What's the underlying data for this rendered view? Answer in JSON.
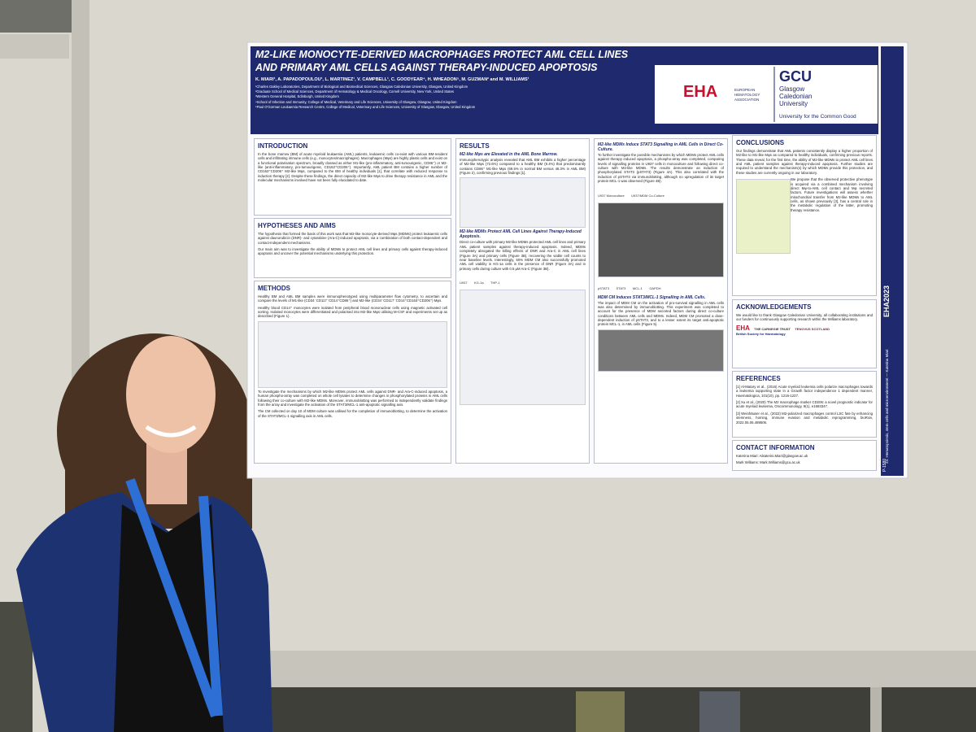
{
  "poster": {
    "title": "M2-LIKE MONOCYTE-DERIVED MACROPHAGES PROTECT AML CELL LINES AND PRIMARY AML CELLS AGAINST THERAPY-INDUCED APOPTOSIS",
    "authors": "K. MIARI¹, A. PAPADOPOULOU¹, L. MARTINEZ¹, V. CAMPBELL¹, C. GOODYEAR⁴, H. WHEADON⁵, M. GUZMAN² and M. WILLIAMS¹",
    "affiliations": [
      "¹Charles Oakley Laboratories, Department of Biological and Biomedical Sciences, Glasgow Caledonian University, Glasgow, United Kingdom",
      "²Graduate School of Medical Sciences, Department of Hematology & Medical Oncology, Cornell University, New York, United States",
      "³Western General Hospital, Edinburgh, United Kingdom",
      "⁴School of Infection and Immunity, College of Medical, Veterinary and Life Sciences, University of Glasgow, Glasgow, United Kingdom",
      "⁵Paul O'Gorman Leukaemia Research Centre, College of Medical, Veterinary and Life Sciences, University of Glasgow, Glasgow, United Kingdom"
    ],
    "logos": {
      "eha": "EHA",
      "eha_name": "EUROPEAN HEMATOLOGY ASSOCIATION",
      "gcu": "GCU",
      "gcu_name": "Glasgow Caledonian University",
      "gcu_motto": "University for the Common Good"
    },
    "introduction": {
      "heading": "INTRODUCTION",
      "body": "In the bone marrow (BM) of acute myeloid leukaemia (AML) patients, leukaemic cells co-exist with various BM-resident cells and infiltrating immune cells (e.g., monocytes/macrophages). Macrophages (Mφs) are highly plastic cells and exist on a functional polarisation spectrum, broadly classed as either M1-like (pro-inflammatory, anti-tumourigenic, CD86⁺) or M2-like (anti-inflammatory, pro-tumourigenic, CD163⁺CD206⁺). Importantly, AML patient BM contains a higher number of CD163⁺CD206⁺ M2-like Mφs, compared to the BM of healthy individuals [1], that correlate with reduced response to induction therapy [2]. Despite these findings, the direct capacity of M2-like Mφs to drive therapy resistance in AML and the molecular mechanisms involved have not been fully elucidated to date."
    },
    "hypotheses": {
      "heading": "HYPOTHESES AND AIMS",
      "body": [
        "The hypothesis that formed the basis of this work was that M2-like monocyte-derived Mφs (MDMs) protect leukaemic cells against daunorubicin (DNR)- and cytarabine (Ara-C)-induced apoptosis, via a combination of both contact-dependent and contact-independent mechanisms.",
        "Our main aim was to investigate the ability of MDMs to protect AML cell lines and primary cells against therapy-induced apoptosis and uncover the potential mechanisms underlying this protection."
      ]
    },
    "methods": {
      "heading": "METHODS",
      "body": [
        "Healthy BM and AML BM samples were immunophenotyped using multiparameter flow cytometry, to ascertain and compare the levels of M1-like (CD34⁻CD117⁻CD14⁺CD86⁺) and M2-like (CD34⁻CD117⁻CD14⁺CD163⁺CD206⁺) Mφs.",
        "Healthy blood CD14⁺ monocytes were isolated from peripheral blood mononuclear cells using magnetic activated cell sorting. Isolated monocytes were differentiated and polarised into M2-like Mφs utilising M-CSF and experiments set up as described (Figure 1).",
        "To investigate the mechanisms by which M2-like MDMs protect AML cells against DNR- and Ara-C-induced apoptosis, a human phospho-array was completed on whole cell lysates to determine changes in phosphorylated proteins in AML cells following their co-culture with M2-like MDMs. Moreover, immunoblotting was performed to independently validate findings from the array and investigate the activation of the STAT3/MCL-1 anti-apoptotic signalling axis.",
        "The CM collected on day 10 of MDM culture was utilised for the completion of immunoblotting, to determine the activation of the STAT3/MCL-1 signalling axis in AML cells."
      ]
    },
    "results": {
      "heading": "RESULTS",
      "subsections": [
        {
          "heading": "M2-like Mφs are Elevated in the AML Bone Marrow.",
          "body": "Immunophenotypic analysis revealed that AML BM exhibits a higher percentage of M2-like Mφs (72.6%) compared to a healthy BM (9.4%) that predominantly contains CD86⁺ M1-like Mφs (69.5% in normal BM versus 48.3% in AML BM) (Figure 2), confirming previous findings [1]."
        },
        {
          "heading": "M2-like MDMs Protect AML Cell Lines Against Therapy-Induced Apoptosis.",
          "body": "Direct co-culture with primary M2-like MDMs protected AML cell lines and primary AML patient samples against therapy-induced apoptosis. Indeed, MDMs completely abrogated the killing effects of DNR and Ara-C in AML cell lines (Figure 3A) and primary cells (Figure 3B), recovering the viable cell counts to near baseline levels. Interestingly, 50% MDM CM also successfully promoted AML cell viability in KG-1a cells in the presence of DNR (Figure 3A) and in primary cells during culture with 0.5 µM Ara-C (Figure 3B)."
        },
        {
          "heading": "M2-like MDMs Induce STAT3 Signalling in AML Cells in Direct Co-Culture.",
          "body": "To further investigate the possible mechanisms by which MDMs protect AML cells against therapy induced apoptosis, a phospho-array was completed, comparing levels of signalling proteins in U937 cells in monoculture and following direct co-culture with M2-like MDMs. The results demonstrate an induction of phosphorylated STAT3 (pSTAT3) (Figure 4A). This also correlated with the induction of pSTAT3 via immunoblotting, although no upregulation of its target protein MCL-1 was observed (Figure 4B)."
        },
        {
          "heading": "MDM CM Induces STAT3/MCL-1 Signalling in AML Cells.",
          "body": "The impact of MDM CM on the activation of pro-survival signalling in AML cells was also determined by immunoblotting. This experiment was completed to account for the presence of MDM secreted factors during direct co-culture conditions between AML cells and MDMs. Indeed, MDM CM promoted a dose-dependent induction of pSTAT3, and to a lesser extent its target anti-apoptotic protein MCL-1, in AML cells (Figure 5)."
        }
      ],
      "figure_labels": [
        "U937",
        "KG-1a",
        "THP-1",
        "U937 Monoculture",
        "U937/MDM Co-Culture",
        "pSTAT3",
        "STAT3",
        "MCL-1",
        "GAPDH"
      ]
    },
    "conclusions": {
      "heading": "CONCLUSIONS",
      "body": [
        "Our findings demonstrate that AML patients consistently display a higher proportion of M2-like to M1-like Mφs as compared to healthy individuals, confirming previous reports. These data reveal, for the first time, the ability of M2-like MDMs to protect AML cell lines and AML patient samples against therapy-induced apoptosis. Further studies are required to understand the mechanism(s) by which MDMs provide this protection, and these studies are currently ongoing in our laboratory.",
        "We propose that the observed protective phenotype is acquired via a combined mechanism involving direct Mφ-to-AML cell contact and Mφ secreted factors. Future investigations will assess whether mitochondrial transfer from M2-like MDMs to AML cells, as shown previously [3], has a central role in the metabolic regulation of the latter, promoting therapy resistance."
      ]
    },
    "acknowledgements": {
      "heading": "ACKNOWLEDGEMENTS",
      "body": "We would like to thank Glasgow Caledonian University, all collaborating institutions and our funders for continuously supporting research within the Williams laboratory.",
      "funders": [
        "EHA",
        "THE CARNEGIE TRUST",
        "TENOVUS SCOTLAND",
        "British Society for Haematology"
      ]
    },
    "references": {
      "heading": "REFERENCES",
      "items": [
        "[1] Al-Matary et al., (2016) Acute myeloid leukemia cells polarize macrophages towards a leukemia supporting state in a Growth factor independence 1 dependent manner, Haematologica, 101(10), pp. 1216-1227.",
        "[2] Xu et al., (2020) The M2 macrophage marker CD206: a novel prognostic indicator for acute myeloid leukemia, Oncoimmunology, 9(1), e1683347.",
        "[3] Weinhäuser et al., (2022) M2-polarized macrophages control LSC fate by enhancing stemness, homing, immune evasion and metabolic reprogramming, bioRxiv, 2022.05.06.489506."
      ]
    },
    "contact": {
      "heading": "CONTACT INFORMATION",
      "items": [
        "Katerina Miari: Aikaterini.Miari@glasgow.ac.uk",
        "Mark Williams: Mark.Williams@gcu.ac.uk"
      ]
    },
    "side": {
      "congress": "EHA2023",
      "poster_id": "P-1580",
      "topic": "23. Hematopoiesis, stem cells and microenvironment",
      "presenter": "Katerina Miari"
    }
  }
}
